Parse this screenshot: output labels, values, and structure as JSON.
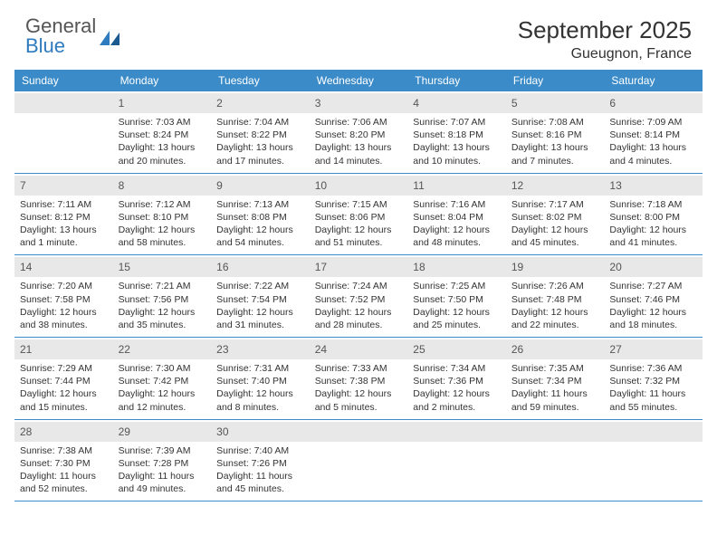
{
  "brand": {
    "part1": "General",
    "part2": "Blue"
  },
  "title": "September 2025",
  "location": "Gueugnon, France",
  "colors": {
    "header_bg": "#3b8bc9",
    "daynum_bg": "#e8e8e8",
    "text": "#333333",
    "brand_gray": "#555555",
    "brand_blue": "#2f7bbf"
  },
  "day_names": [
    "Sunday",
    "Monday",
    "Tuesday",
    "Wednesday",
    "Thursday",
    "Friday",
    "Saturday"
  ],
  "weeks": [
    [
      {
        "n": "",
        "sr": "",
        "ss": "",
        "dl": ""
      },
      {
        "n": "1",
        "sr": "Sunrise: 7:03 AM",
        "ss": "Sunset: 8:24 PM",
        "dl": "Daylight: 13 hours and 20 minutes."
      },
      {
        "n": "2",
        "sr": "Sunrise: 7:04 AM",
        "ss": "Sunset: 8:22 PM",
        "dl": "Daylight: 13 hours and 17 minutes."
      },
      {
        "n": "3",
        "sr": "Sunrise: 7:06 AM",
        "ss": "Sunset: 8:20 PM",
        "dl": "Daylight: 13 hours and 14 minutes."
      },
      {
        "n": "4",
        "sr": "Sunrise: 7:07 AM",
        "ss": "Sunset: 8:18 PM",
        "dl": "Daylight: 13 hours and 10 minutes."
      },
      {
        "n": "5",
        "sr": "Sunrise: 7:08 AM",
        "ss": "Sunset: 8:16 PM",
        "dl": "Daylight: 13 hours and 7 minutes."
      },
      {
        "n": "6",
        "sr": "Sunrise: 7:09 AM",
        "ss": "Sunset: 8:14 PM",
        "dl": "Daylight: 13 hours and 4 minutes."
      }
    ],
    [
      {
        "n": "7",
        "sr": "Sunrise: 7:11 AM",
        "ss": "Sunset: 8:12 PM",
        "dl": "Daylight: 13 hours and 1 minute."
      },
      {
        "n": "8",
        "sr": "Sunrise: 7:12 AM",
        "ss": "Sunset: 8:10 PM",
        "dl": "Daylight: 12 hours and 58 minutes."
      },
      {
        "n": "9",
        "sr": "Sunrise: 7:13 AM",
        "ss": "Sunset: 8:08 PM",
        "dl": "Daylight: 12 hours and 54 minutes."
      },
      {
        "n": "10",
        "sr": "Sunrise: 7:15 AM",
        "ss": "Sunset: 8:06 PM",
        "dl": "Daylight: 12 hours and 51 minutes."
      },
      {
        "n": "11",
        "sr": "Sunrise: 7:16 AM",
        "ss": "Sunset: 8:04 PM",
        "dl": "Daylight: 12 hours and 48 minutes."
      },
      {
        "n": "12",
        "sr": "Sunrise: 7:17 AM",
        "ss": "Sunset: 8:02 PM",
        "dl": "Daylight: 12 hours and 45 minutes."
      },
      {
        "n": "13",
        "sr": "Sunrise: 7:18 AM",
        "ss": "Sunset: 8:00 PM",
        "dl": "Daylight: 12 hours and 41 minutes."
      }
    ],
    [
      {
        "n": "14",
        "sr": "Sunrise: 7:20 AM",
        "ss": "Sunset: 7:58 PM",
        "dl": "Daylight: 12 hours and 38 minutes."
      },
      {
        "n": "15",
        "sr": "Sunrise: 7:21 AM",
        "ss": "Sunset: 7:56 PM",
        "dl": "Daylight: 12 hours and 35 minutes."
      },
      {
        "n": "16",
        "sr": "Sunrise: 7:22 AM",
        "ss": "Sunset: 7:54 PM",
        "dl": "Daylight: 12 hours and 31 minutes."
      },
      {
        "n": "17",
        "sr": "Sunrise: 7:24 AM",
        "ss": "Sunset: 7:52 PM",
        "dl": "Daylight: 12 hours and 28 minutes."
      },
      {
        "n": "18",
        "sr": "Sunrise: 7:25 AM",
        "ss": "Sunset: 7:50 PM",
        "dl": "Daylight: 12 hours and 25 minutes."
      },
      {
        "n": "19",
        "sr": "Sunrise: 7:26 AM",
        "ss": "Sunset: 7:48 PM",
        "dl": "Daylight: 12 hours and 22 minutes."
      },
      {
        "n": "20",
        "sr": "Sunrise: 7:27 AM",
        "ss": "Sunset: 7:46 PM",
        "dl": "Daylight: 12 hours and 18 minutes."
      }
    ],
    [
      {
        "n": "21",
        "sr": "Sunrise: 7:29 AM",
        "ss": "Sunset: 7:44 PM",
        "dl": "Daylight: 12 hours and 15 minutes."
      },
      {
        "n": "22",
        "sr": "Sunrise: 7:30 AM",
        "ss": "Sunset: 7:42 PM",
        "dl": "Daylight: 12 hours and 12 minutes."
      },
      {
        "n": "23",
        "sr": "Sunrise: 7:31 AM",
        "ss": "Sunset: 7:40 PM",
        "dl": "Daylight: 12 hours and 8 minutes."
      },
      {
        "n": "24",
        "sr": "Sunrise: 7:33 AM",
        "ss": "Sunset: 7:38 PM",
        "dl": "Daylight: 12 hours and 5 minutes."
      },
      {
        "n": "25",
        "sr": "Sunrise: 7:34 AM",
        "ss": "Sunset: 7:36 PM",
        "dl": "Daylight: 12 hours and 2 minutes."
      },
      {
        "n": "26",
        "sr": "Sunrise: 7:35 AM",
        "ss": "Sunset: 7:34 PM",
        "dl": "Daylight: 11 hours and 59 minutes."
      },
      {
        "n": "27",
        "sr": "Sunrise: 7:36 AM",
        "ss": "Sunset: 7:32 PM",
        "dl": "Daylight: 11 hours and 55 minutes."
      }
    ],
    [
      {
        "n": "28",
        "sr": "Sunrise: 7:38 AM",
        "ss": "Sunset: 7:30 PM",
        "dl": "Daylight: 11 hours and 52 minutes."
      },
      {
        "n": "29",
        "sr": "Sunrise: 7:39 AM",
        "ss": "Sunset: 7:28 PM",
        "dl": "Daylight: 11 hours and 49 minutes."
      },
      {
        "n": "30",
        "sr": "Sunrise: 7:40 AM",
        "ss": "Sunset: 7:26 PM",
        "dl": "Daylight: 11 hours and 45 minutes."
      },
      {
        "n": "",
        "sr": "",
        "ss": "",
        "dl": ""
      },
      {
        "n": "",
        "sr": "",
        "ss": "",
        "dl": ""
      },
      {
        "n": "",
        "sr": "",
        "ss": "",
        "dl": ""
      },
      {
        "n": "",
        "sr": "",
        "ss": "",
        "dl": ""
      }
    ]
  ]
}
